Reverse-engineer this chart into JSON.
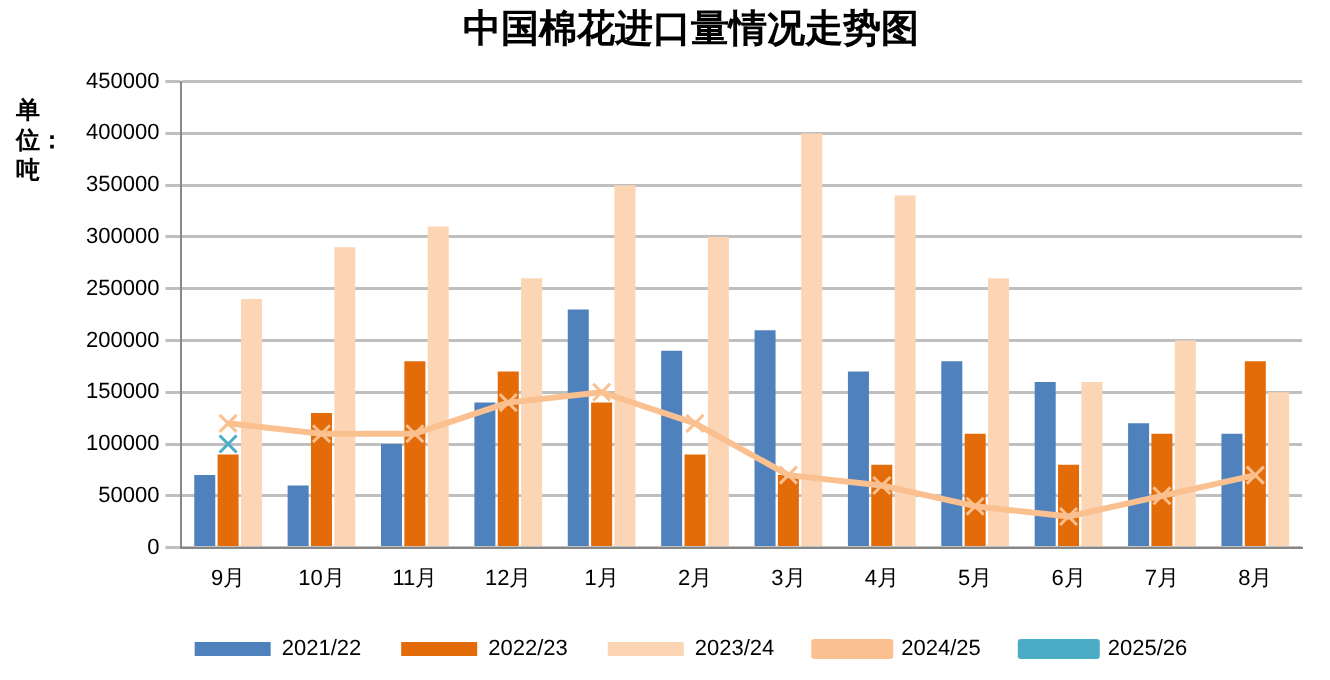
{
  "chart_data": {
    "type": "bar",
    "title": "中国棉花进口量情况走势图",
    "ylabel": "单位：吨",
    "categories": [
      "9月",
      "10月",
      "11月",
      "12月",
      "1月",
      "2月",
      "3月",
      "4月",
      "5月",
      "6月",
      "7月",
      "8月"
    ],
    "series": [
      {
        "name": "2021/22",
        "color": "#4f81bd",
        "values": [
          70000,
          60000,
          100000,
          140000,
          230000,
          190000,
          210000,
          170000,
          180000,
          160000,
          120000,
          110000
        ]
      },
      {
        "name": "2022/23",
        "color": "#e36c09",
        "values": [
          90000,
          130000,
          180000,
          170000,
          140000,
          90000,
          70000,
          80000,
          110000,
          80000,
          110000,
          180000
        ]
      },
      {
        "name": "2023/24",
        "color": "#fcd5b5",
        "values": [
          240000,
          290000,
          310000,
          260000,
          350000,
          300000,
          400000,
          340000,
          260000,
          160000,
          200000,
          150000
        ]
      },
      {
        "name": "2024/25",
        "type": "line",
        "color": "#fac090",
        "marker": "cross",
        "values": [
          120000,
          110000,
          110000,
          140000,
          150000,
          120000,
          70000,
          60000,
          40000,
          30000,
          50000,
          70000
        ]
      },
      {
        "name": "2025/26",
        "type": "line",
        "color": "#4bacc6",
        "marker": "cross",
        "values": [
          100000,
          null,
          null,
          null,
          null,
          null,
          null,
          null,
          null,
          null,
          null,
          null
        ]
      }
    ],
    "ylim": [
      0,
      450000
    ],
    "yticks": [
      0,
      50000,
      100000,
      150000,
      200000,
      250000,
      300000,
      350000,
      400000,
      450000
    ],
    "grid": "y",
    "legend": "bottom"
  }
}
